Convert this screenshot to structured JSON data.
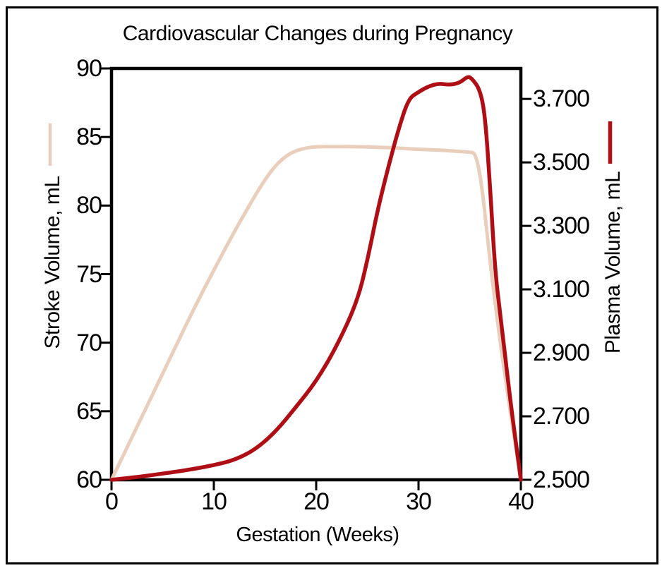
{
  "title": "Cardiovascular Changes during Pregnancy",
  "colors": {
    "stroke_volume_line": "#e9cebc",
    "plasma_volume_line": "#b00e15",
    "frame": "#000000",
    "background": "#ffffff",
    "text": "#000000"
  },
  "chart_data": {
    "type": "line",
    "title": "Cardiovascular Changes during Pregnancy",
    "xlabel": "Gestation (Weeks)",
    "xlim": [
      0,
      40
    ],
    "x_ticks": [
      0,
      10,
      20,
      30,
      40
    ],
    "x_tick_labels": [
      "0",
      "10",
      "20",
      "30",
      "40"
    ],
    "grid": false,
    "left_axis": {
      "label": "Stroke Volume, mL",
      "range": [
        60,
        90
      ],
      "tick_values": [
        90,
        85,
        80,
        75,
        70,
        65,
        60
      ],
      "tick_labels": [
        "90",
        "85",
        "80",
        "75",
        "70",
        "65",
        "60"
      ]
    },
    "right_axis": {
      "label": "Plasma Volume, mL",
      "range": [
        2.5,
        3.796
      ],
      "tick_values": [
        3.7,
        3.5,
        3.3,
        3.1,
        2.9,
        2.7,
        2.5
      ],
      "tick_labels": [
        "3.700",
        "3.500",
        "3.300",
        "3.100",
        "2.900",
        "2.700",
        "2.500"
      ]
    },
    "legend": [
      {
        "name": "Stroke Volume, mL",
        "color": "#e9cebc",
        "position": "left-of-plot"
      },
      {
        "name": "Plasma Volume, mL",
        "color": "#b00e15",
        "position": "right-of-plot"
      }
    ],
    "series": [
      {
        "name": "Stroke Volume",
        "axis": "left",
        "color": "#e9cebc",
        "x": [
          0,
          2,
          4,
          6,
          8,
          10,
          12,
          13,
          14,
          15,
          16,
          17,
          18,
          19,
          20,
          22,
          24,
          26,
          28,
          30,
          32,
          34,
          35,
          35.6,
          36.2,
          37,
          38,
          39,
          40
        ],
        "y": [
          60,
          63.1,
          66.2,
          69.3,
          72.4,
          75.3,
          78.1,
          79.4,
          80.7,
          81.9,
          82.9,
          83.6,
          84.0,
          84.2,
          84.3,
          84.3,
          84.3,
          84.25,
          84.2,
          84.1,
          84.05,
          83.95,
          83.9,
          83.8,
          81.5,
          75.8,
          69.9,
          64.8,
          60
        ]
      },
      {
        "name": "Plasma Volume",
        "axis": "right",
        "color": "#b00e15",
        "x": [
          0,
          2,
          4,
          6,
          8,
          10,
          12,
          14,
          16,
          18,
          20,
          22,
          24,
          25,
          26,
          27,
          28,
          29,
          30,
          31,
          32,
          33,
          34,
          34.8,
          35.2,
          36,
          36.5,
          37,
          37.5,
          38,
          39,
          40
        ],
        "y": [
          2.5,
          2.507,
          2.515,
          2.524,
          2.534,
          2.546,
          2.562,
          2.594,
          2.65,
          2.728,
          2.81,
          2.92,
          3.06,
          3.19,
          3.35,
          3.48,
          3.6,
          3.7,
          3.722,
          3.74,
          3.749,
          3.744,
          3.75,
          3.771,
          3.765,
          3.73,
          3.65,
          3.42,
          3.15,
          3.02,
          2.74,
          2.5
        ]
      }
    ]
  }
}
